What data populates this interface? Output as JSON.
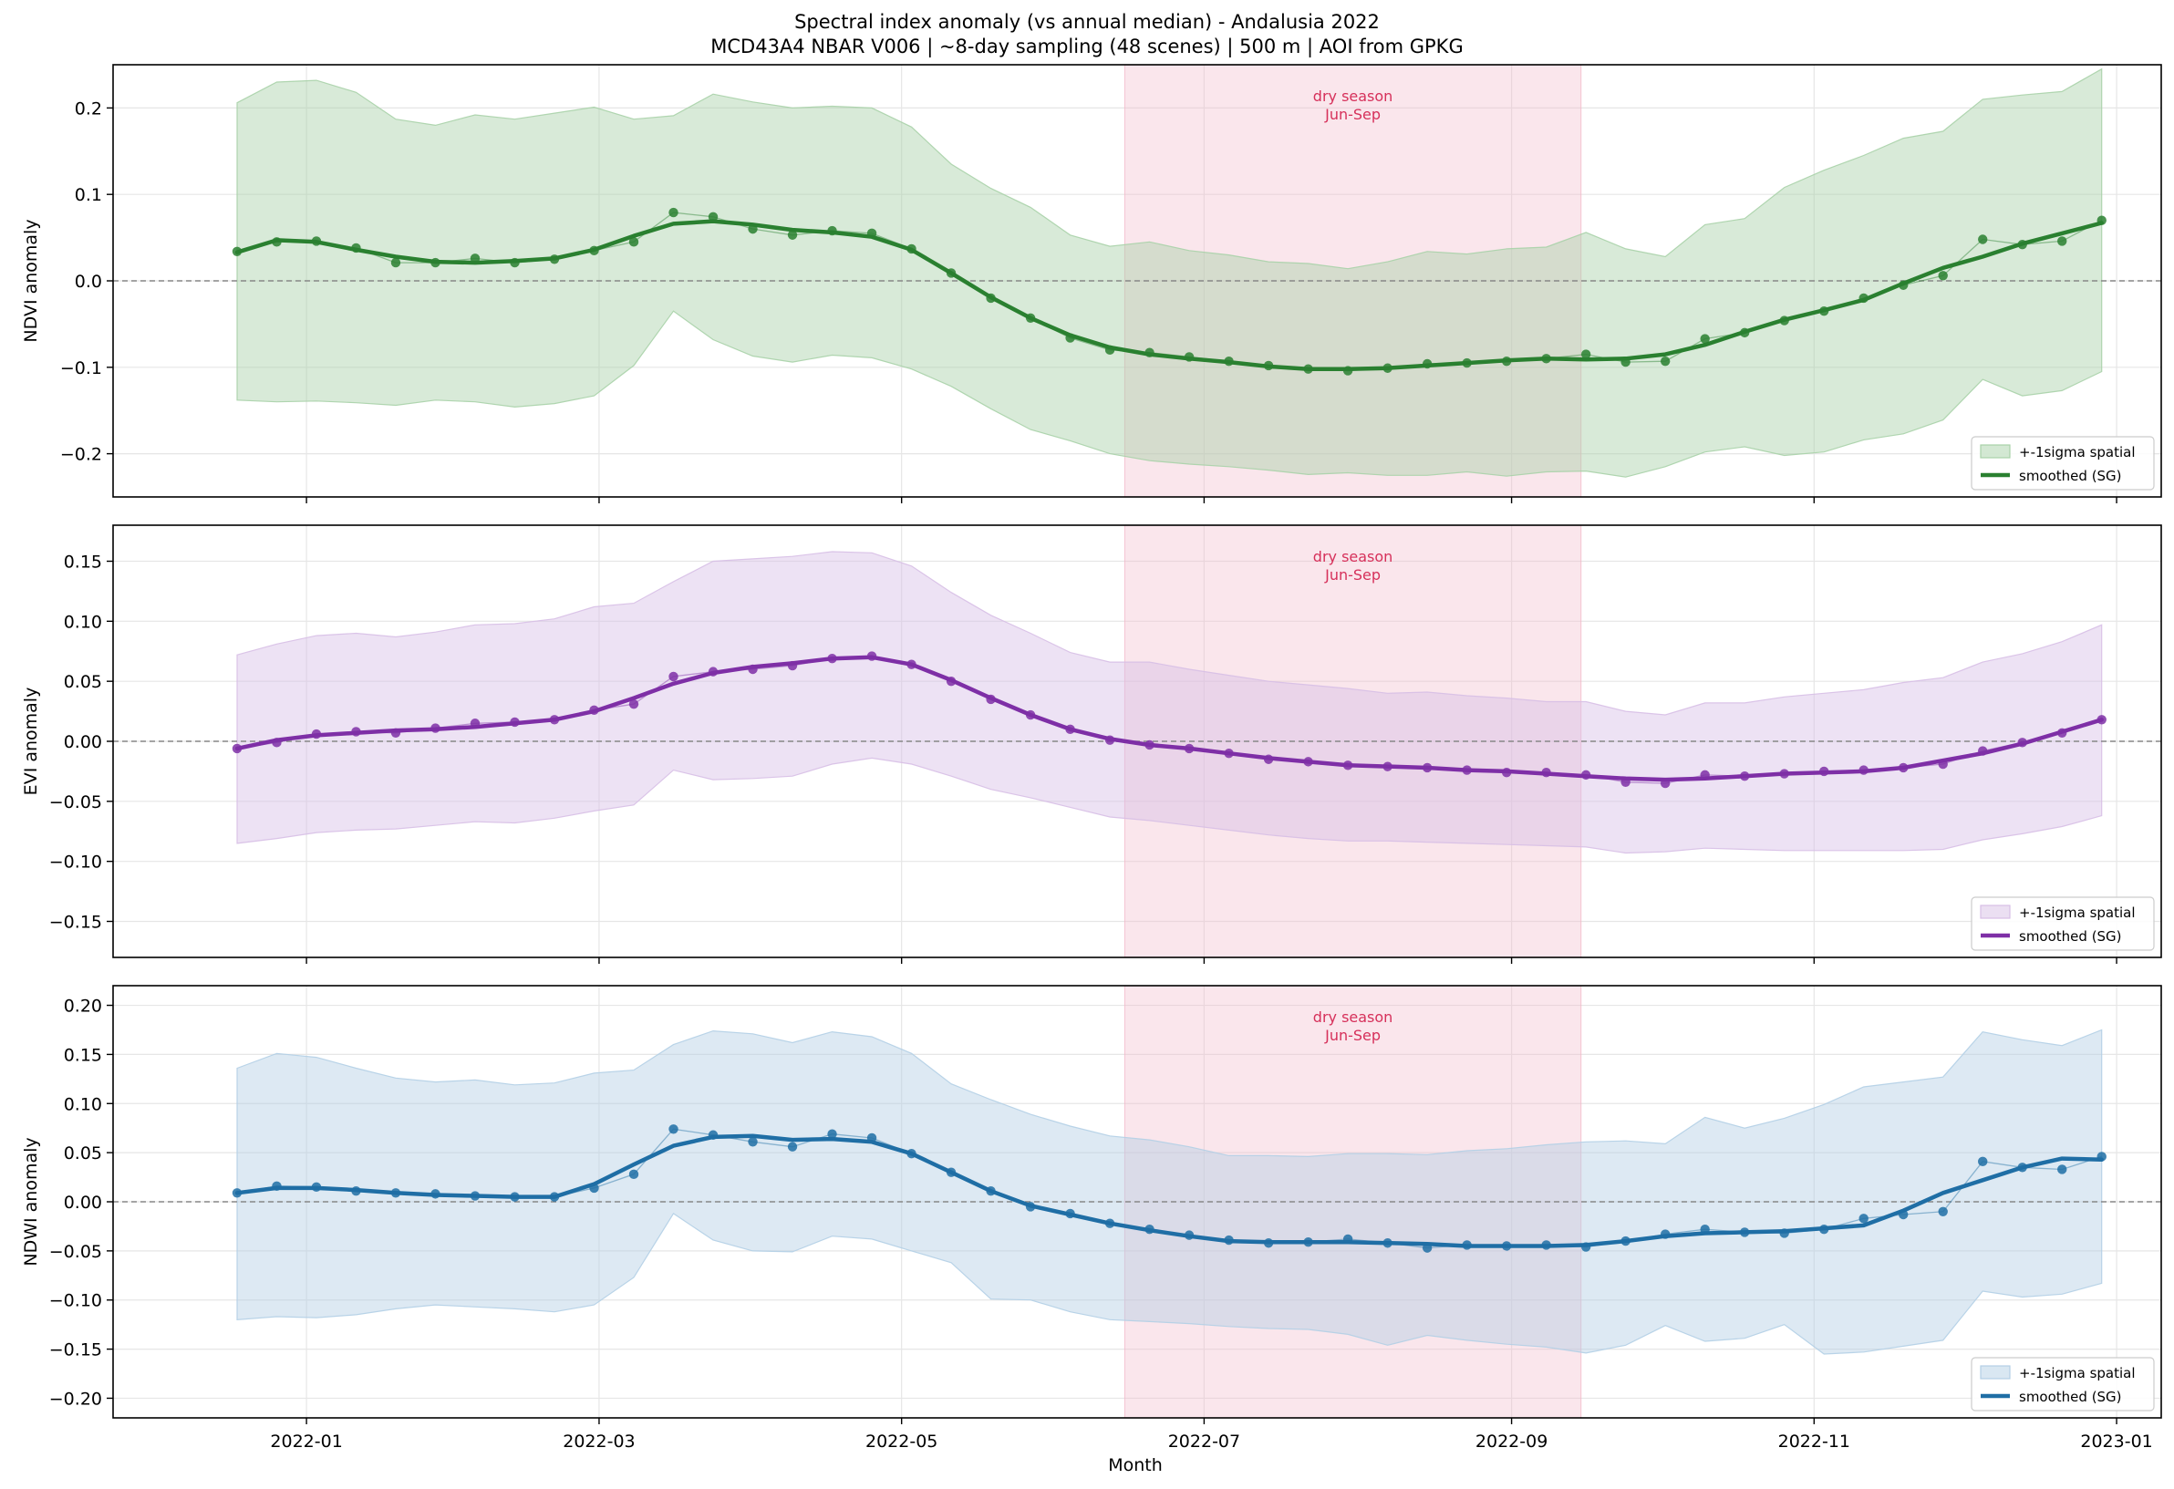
{
  "title_lines": [
    "Spectral index anomaly (vs annual median) - Andalusia 2022",
    "MCD43A4 NBAR V006  |  ~8-day sampling (48 scenes)  |  500 m  |  AOI from GPKG"
  ],
  "xlabel": "Month",
  "x_tick_labels": [
    "2022-01",
    "2022-03",
    "2022-05",
    "2022-07",
    "2022-09",
    "2022-11",
    "2023-01"
  ],
  "x_tick_dates": [
    "2022-01-01",
    "2022-03-01",
    "2022-05-01",
    "2022-07-01",
    "2022-09-01",
    "2022-11-01",
    "2023-01-01"
  ],
  "x_range": [
    "2021-11-23",
    "2023-01-10"
  ],
  "dry_season": {
    "start": "2022-06-15",
    "end": "2022-09-15",
    "line1": "dry season",
    "line2": "Jun-Sep",
    "color": "#f2b6c8"
  },
  "legend": {
    "band_label": "+-1sigma spatial",
    "line_label": "smoothed (SG)",
    "placement": "lower right"
  },
  "chart_data": [
    {
      "type": "line",
      "ylabel": "NDVI anomaly",
      "ylim": [
        -0.25,
        0.25
      ],
      "yticks": [
        -0.2,
        -0.1,
        0.0,
        0.1,
        0.2
      ],
      "ytick_labels": [
        "−0.2",
        "−0.1",
        "0.0",
        "0.1",
        "0.2"
      ],
      "color": "#2a8030",
      "band_color": "#a8d1a8",
      "grid": true,
      "zero_line": true,
      "x": [
        "2021-12-18",
        "2021-12-26",
        "2022-01-03",
        "2022-01-11",
        "2022-01-19",
        "2022-01-27",
        "2022-02-04",
        "2022-02-12",
        "2022-02-20",
        "2022-02-28",
        "2022-03-08",
        "2022-03-16",
        "2022-03-24",
        "2022-04-01",
        "2022-04-09",
        "2022-04-17",
        "2022-04-25",
        "2022-05-03",
        "2022-05-11",
        "2022-05-19",
        "2022-05-27",
        "2022-06-04",
        "2022-06-12",
        "2022-06-20",
        "2022-06-28",
        "2022-07-06",
        "2022-07-14",
        "2022-07-22",
        "2022-07-30",
        "2022-08-07",
        "2022-08-15",
        "2022-08-23",
        "2022-08-31",
        "2022-09-08",
        "2022-09-16",
        "2022-09-24",
        "2022-10-02",
        "2022-10-10",
        "2022-10-18",
        "2022-10-26",
        "2022-11-03",
        "2022-11-11",
        "2022-11-19",
        "2022-11-27",
        "2022-12-05",
        "2022-12-13",
        "2022-12-21",
        "2022-12-29"
      ],
      "raw": [
        0.034,
        0.045,
        0.046,
        0.038,
        0.021,
        0.021,
        0.026,
        0.021,
        0.025,
        0.035,
        0.045,
        0.079,
        0.074,
        0.06,
        0.053,
        0.058,
        0.055,
        0.037,
        0.009,
        -0.02,
        -0.043,
        -0.066,
        -0.08,
        -0.083,
        -0.088,
        -0.093,
        -0.098,
        -0.102,
        -0.104,
        -0.101,
        -0.096,
        -0.095,
        -0.093,
        -0.09,
        -0.085,
        -0.094,
        -0.093,
        -0.067,
        -0.06,
        -0.046,
        -0.035,
        -0.02,
        -0.005,
        0.006,
        0.048,
        0.042,
        0.046,
        0.07
      ],
      "smoothed": [
        0.033,
        0.047,
        0.045,
        0.036,
        0.028,
        0.022,
        0.021,
        0.023,
        0.026,
        0.036,
        0.052,
        0.066,
        0.069,
        0.065,
        0.059,
        0.056,
        0.051,
        0.036,
        0.009,
        -0.019,
        -0.043,
        -0.063,
        -0.077,
        -0.085,
        -0.09,
        -0.094,
        -0.099,
        -0.102,
        -0.102,
        -0.101,
        -0.098,
        -0.095,
        -0.092,
        -0.09,
        -0.091,
        -0.09,
        -0.085,
        -0.074,
        -0.059,
        -0.045,
        -0.034,
        -0.022,
        -0.003,
        0.015,
        0.028,
        0.043,
        0.055,
        0.067
      ],
      "band_upper": [
        0.206,
        0.23,
        0.232,
        0.218,
        0.187,
        0.18,
        0.192,
        0.187,
        0.194,
        0.201,
        0.187,
        0.191,
        0.216,
        0.207,
        0.2,
        0.202,
        0.2,
        0.178,
        0.135,
        0.107,
        0.085,
        0.053,
        0.04,
        0.045,
        0.035,
        0.03,
        0.022,
        0.02,
        0.014,
        0.022,
        0.034,
        0.031,
        0.037,
        0.039,
        0.056,
        0.037,
        0.028,
        0.065,
        0.072,
        0.108,
        0.128,
        0.145,
        0.165,
        0.173,
        0.21,
        0.215,
        0.219,
        0.245
      ],
      "band_lower": [
        -0.138,
        -0.14,
        -0.139,
        -0.141,
        -0.144,
        -0.138,
        -0.14,
        -0.146,
        -0.142,
        -0.133,
        -0.098,
        -0.035,
        -0.068,
        -0.087,
        -0.094,
        -0.086,
        -0.089,
        -0.102,
        -0.122,
        -0.148,
        -0.172,
        -0.185,
        -0.2,
        -0.208,
        -0.212,
        -0.215,
        -0.219,
        -0.224,
        -0.222,
        -0.225,
        -0.225,
        -0.221,
        -0.226,
        -0.221,
        -0.22,
        -0.227,
        -0.215,
        -0.198,
        -0.192,
        -0.202,
        -0.198,
        -0.184,
        -0.177,
        -0.161,
        -0.114,
        -0.133,
        -0.127,
        -0.105
      ]
    },
    {
      "type": "line",
      "ylabel": "EVI anomaly",
      "ylim": [
        -0.18,
        0.18
      ],
      "yticks": [
        -0.15,
        -0.1,
        -0.05,
        0.0,
        0.05,
        0.1,
        0.15
      ],
      "ytick_labels": [
        "−0.15",
        "−0.10",
        "−0.05",
        "0.00",
        "0.05",
        "0.10",
        "0.15"
      ],
      "color": "#7e2fa6",
      "band_color": "#d7bfe6",
      "grid": true,
      "zero_line": true,
      "x": [
        "2021-12-18",
        "2021-12-26",
        "2022-01-03",
        "2022-01-11",
        "2022-01-19",
        "2022-01-27",
        "2022-02-04",
        "2022-02-12",
        "2022-02-20",
        "2022-02-28",
        "2022-03-08",
        "2022-03-16",
        "2022-03-24",
        "2022-04-01",
        "2022-04-09",
        "2022-04-17",
        "2022-04-25",
        "2022-05-03",
        "2022-05-11",
        "2022-05-19",
        "2022-05-27",
        "2022-06-04",
        "2022-06-12",
        "2022-06-20",
        "2022-06-28",
        "2022-07-06",
        "2022-07-14",
        "2022-07-22",
        "2022-07-30",
        "2022-08-07",
        "2022-08-15",
        "2022-08-23",
        "2022-08-31",
        "2022-09-08",
        "2022-09-16",
        "2022-09-24",
        "2022-10-02",
        "2022-10-10",
        "2022-10-18",
        "2022-10-26",
        "2022-11-03",
        "2022-11-11",
        "2022-11-19",
        "2022-11-27",
        "2022-12-05",
        "2022-12-13",
        "2022-12-21",
        "2022-12-29"
      ],
      "raw": [
        -0.006,
        -0.001,
        0.006,
        0.008,
        0.007,
        0.011,
        0.015,
        0.016,
        0.018,
        0.026,
        0.031,
        0.054,
        0.058,
        0.06,
        0.063,
        0.069,
        0.071,
        0.064,
        0.05,
        0.035,
        0.022,
        0.01,
        0.001,
        -0.003,
        -0.006,
        -0.01,
        -0.015,
        -0.017,
        -0.02,
        -0.021,
        -0.022,
        -0.024,
        -0.026,
        -0.026,
        -0.028,
        -0.034,
        -0.035,
        -0.028,
        -0.029,
        -0.027,
        -0.025,
        -0.024,
        -0.022,
        -0.019,
        -0.008,
        -0.001,
        0.007,
        0.018
      ],
      "smoothed": [
        -0.006,
        0.001,
        0.005,
        0.007,
        0.009,
        0.01,
        0.012,
        0.015,
        0.018,
        0.025,
        0.036,
        0.048,
        0.057,
        0.062,
        0.065,
        0.069,
        0.07,
        0.064,
        0.051,
        0.036,
        0.022,
        0.01,
        0.002,
        -0.003,
        -0.006,
        -0.01,
        -0.014,
        -0.017,
        -0.02,
        -0.021,
        -0.022,
        -0.024,
        -0.025,
        -0.027,
        -0.029,
        -0.031,
        -0.032,
        -0.031,
        -0.029,
        -0.027,
        -0.026,
        -0.025,
        -0.022,
        -0.016,
        -0.01,
        -0.002,
        0.008,
        0.018
      ],
      "band_upper": [
        0.072,
        0.081,
        0.088,
        0.09,
        0.087,
        0.091,
        0.097,
        0.098,
        0.102,
        0.112,
        0.115,
        0.133,
        0.15,
        0.152,
        0.154,
        0.158,
        0.157,
        0.146,
        0.124,
        0.105,
        0.09,
        0.074,
        0.066,
        0.066,
        0.06,
        0.055,
        0.05,
        0.047,
        0.044,
        0.04,
        0.041,
        0.038,
        0.036,
        0.033,
        0.033,
        0.025,
        0.022,
        0.032,
        0.032,
        0.037,
        0.04,
        0.043,
        0.049,
        0.053,
        0.066,
        0.073,
        0.083,
        0.097
      ],
      "band_lower": [
        -0.085,
        -0.081,
        -0.076,
        -0.074,
        -0.073,
        -0.07,
        -0.067,
        -0.068,
        -0.064,
        -0.058,
        -0.053,
        -0.024,
        -0.032,
        -0.031,
        -0.029,
        -0.019,
        -0.014,
        -0.019,
        -0.029,
        -0.04,
        -0.047,
        -0.055,
        -0.063,
        -0.066,
        -0.07,
        -0.074,
        -0.078,
        -0.081,
        -0.083,
        -0.083,
        -0.084,
        -0.085,
        -0.086,
        -0.087,
        -0.088,
        -0.093,
        -0.092,
        -0.089,
        -0.09,
        -0.091,
        -0.091,
        -0.091,
        -0.091,
        -0.09,
        -0.082,
        -0.077,
        -0.071,
        -0.062
      ]
    },
    {
      "type": "line",
      "ylabel": "NDWI anomaly",
      "ylim": [
        -0.22,
        0.22
      ],
      "yticks": [
        -0.2,
        -0.15,
        -0.1,
        -0.05,
        0.0,
        0.05,
        0.1,
        0.15,
        0.2
      ],
      "ytick_labels": [
        "−0.20",
        "−0.15",
        "−0.10",
        "−0.05",
        "0.00",
        "0.05",
        "0.10",
        "0.15",
        "0.20"
      ],
      "color": "#1f6ea5",
      "band_color": "#b3cfe5",
      "grid": true,
      "zero_line": true,
      "x": [
        "2021-12-18",
        "2021-12-26",
        "2022-01-03",
        "2022-01-11",
        "2022-01-19",
        "2022-01-27",
        "2022-02-04",
        "2022-02-12",
        "2022-02-20",
        "2022-02-28",
        "2022-03-08",
        "2022-03-16",
        "2022-03-24",
        "2022-04-01",
        "2022-04-09",
        "2022-04-17",
        "2022-04-25",
        "2022-05-03",
        "2022-05-11",
        "2022-05-19",
        "2022-05-27",
        "2022-06-04",
        "2022-06-12",
        "2022-06-20",
        "2022-06-28",
        "2022-07-06",
        "2022-07-14",
        "2022-07-22",
        "2022-07-30",
        "2022-08-07",
        "2022-08-15",
        "2022-08-23",
        "2022-08-31",
        "2022-09-08",
        "2022-09-16",
        "2022-09-24",
        "2022-10-02",
        "2022-10-10",
        "2022-10-18",
        "2022-10-26",
        "2022-11-03",
        "2022-11-11",
        "2022-11-19",
        "2022-11-27",
        "2022-12-05",
        "2022-12-13",
        "2022-12-21",
        "2022-12-29"
      ],
      "raw": [
        0.009,
        0.016,
        0.015,
        0.011,
        0.009,
        0.008,
        0.006,
        0.005,
        0.005,
        0.014,
        0.028,
        0.074,
        0.068,
        0.061,
        0.056,
        0.069,
        0.065,
        0.049,
        0.03,
        0.011,
        -0.005,
        -0.012,
        -0.022,
        -0.028,
        -0.034,
        -0.039,
        -0.042,
        -0.041,
        -0.038,
        -0.042,
        -0.047,
        -0.044,
        -0.045,
        -0.044,
        -0.046,
        -0.04,
        -0.033,
        -0.028,
        -0.031,
        -0.032,
        -0.028,
        -0.017,
        -0.013,
        -0.01,
        0.041,
        0.035,
        0.033,
        0.046
      ],
      "smoothed": [
        0.009,
        0.014,
        0.014,
        0.012,
        0.009,
        0.007,
        0.006,
        0.005,
        0.005,
        0.018,
        0.038,
        0.057,
        0.066,
        0.067,
        0.063,
        0.064,
        0.061,
        0.049,
        0.03,
        0.011,
        -0.004,
        -0.013,
        -0.022,
        -0.029,
        -0.035,
        -0.04,
        -0.041,
        -0.041,
        -0.041,
        -0.042,
        -0.043,
        -0.045,
        -0.045,
        -0.045,
        -0.044,
        -0.04,
        -0.035,
        -0.032,
        -0.031,
        -0.03,
        -0.027,
        -0.024,
        -0.009,
        0.009,
        0.022,
        0.035,
        0.044,
        0.043
      ],
      "band_upper": [
        0.136,
        0.151,
        0.147,
        0.136,
        0.126,
        0.122,
        0.124,
        0.119,
        0.121,
        0.131,
        0.134,
        0.16,
        0.174,
        0.171,
        0.162,
        0.173,
        0.168,
        0.151,
        0.12,
        0.104,
        0.089,
        0.077,
        0.067,
        0.063,
        0.056,
        0.047,
        0.047,
        0.046,
        0.049,
        0.049,
        0.048,
        0.052,
        0.054,
        0.058,
        0.061,
        0.062,
        0.059,
        0.086,
        0.075,
        0.085,
        0.099,
        0.117,
        0.122,
        0.127,
        0.173,
        0.165,
        0.159,
        0.175
      ],
      "band_lower": [
        -0.12,
        -0.117,
        -0.118,
        -0.115,
        -0.109,
        -0.105,
        -0.107,
        -0.109,
        -0.112,
        -0.105,
        -0.077,
        -0.012,
        -0.039,
        -0.05,
        -0.051,
        -0.035,
        -0.038,
        -0.05,
        -0.062,
        -0.099,
        -0.1,
        -0.112,
        -0.12,
        -0.122,
        -0.124,
        -0.127,
        -0.129,
        -0.13,
        -0.135,
        -0.146,
        -0.136,
        -0.141,
        -0.145,
        -0.148,
        -0.154,
        -0.146,
        -0.126,
        -0.142,
        -0.139,
        -0.125,
        -0.155,
        -0.153,
        -0.147,
        -0.141,
        -0.091,
        -0.097,
        -0.094,
        -0.083
      ]
    }
  ]
}
